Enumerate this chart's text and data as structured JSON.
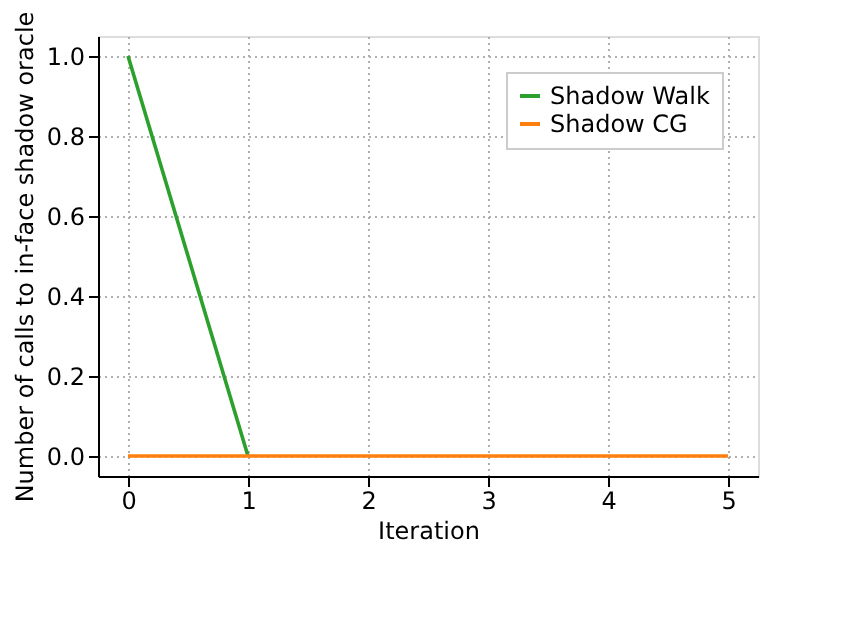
{
  "chart_data": {
    "type": "line",
    "xlabel": "Iteration",
    "ylabel": "Number of calls to in-face shadow oracle",
    "x": [
      0,
      1,
      2,
      3,
      4,
      5
    ],
    "series": [
      {
        "name": "Shadow Walk",
        "color": "#2ca02c",
        "values": [
          1,
          0,
          null,
          null,
          null,
          null
        ]
      },
      {
        "name": "Shadow CG",
        "color": "#ff7f0e",
        "values": [
          0,
          0,
          0,
          0,
          0,
          0
        ]
      }
    ],
    "xlim": [
      -0.25,
      5.25
    ],
    "xticks": [
      0,
      1,
      2,
      3,
      4,
      5
    ],
    "ylim": [
      -0.05,
      1.05
    ],
    "yticks": [
      {
        "value": 0,
        "label": "0.0"
      },
      {
        "value": 0.2,
        "label": "0.2"
      },
      {
        "value": 0.4,
        "label": "0.4"
      },
      {
        "value": 0.6,
        "label": "0.6"
      },
      {
        "value": 0.8,
        "label": "0.8"
      },
      {
        "value": 1,
        "label": "1.0"
      }
    ],
    "grid": true,
    "legend": "top right",
    "marker": "none",
    "line_style": "solid"
  }
}
